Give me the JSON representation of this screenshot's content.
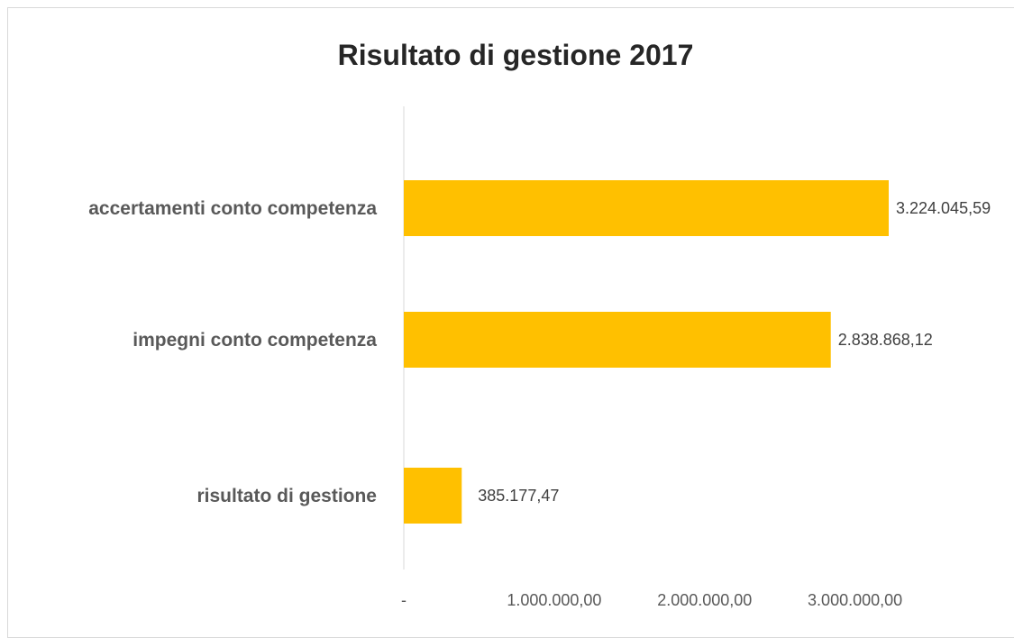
{
  "chart_data": {
    "type": "bar",
    "orientation": "horizontal",
    "title": "Risultato di gestione 2017",
    "categories": [
      "accertamenti conto competenza",
      "impegni conto competenza",
      "risultato di gestione"
    ],
    "values": [
      3224045.59,
      2838868.12,
      385177.47
    ],
    "data_labels": [
      "3.224.045,59",
      "2.838.868,12",
      "385.177,47"
    ],
    "x_ticks": [
      {
        "value": 0,
        "label": "-"
      },
      {
        "value": 1000000,
        "label": "1.000.000,00"
      },
      {
        "value": 2000000,
        "label": "2.000.000,00"
      },
      {
        "value": 3000000,
        "label": "3.000.000,00"
      }
    ],
    "xlim": [
      0,
      3500000
    ],
    "xlabel": "",
    "ylabel": "",
    "grid": false,
    "legend": "none",
    "bar_color": "#FFC000"
  }
}
